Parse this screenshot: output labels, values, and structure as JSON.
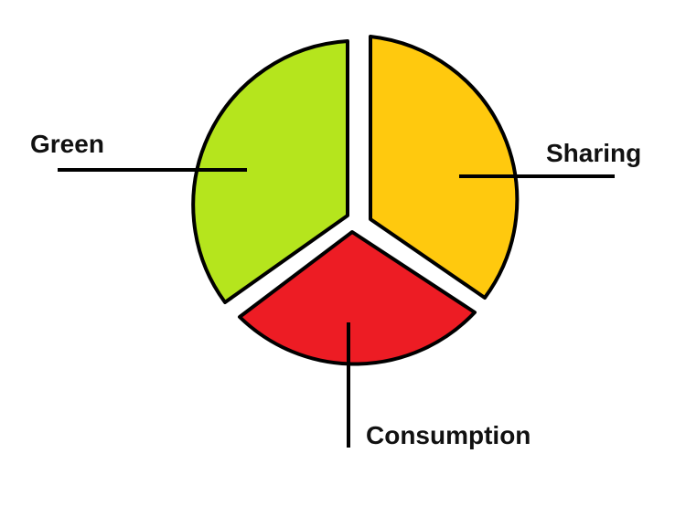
{
  "segments": [
    {
      "id": "green",
      "label": "Green",
      "color": "#b5e51d"
    },
    {
      "id": "sharing",
      "label": "Sharing",
      "color": "#ffc90e"
    },
    {
      "id": "consumption",
      "label": "Consumption",
      "color": "#ed1c24"
    }
  ]
}
